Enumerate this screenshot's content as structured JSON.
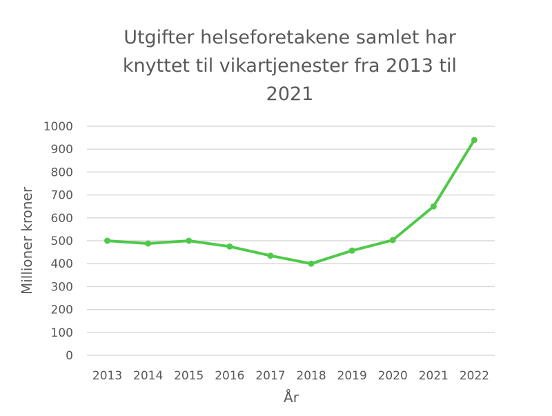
{
  "chart_data": {
    "type": "line",
    "title": "Utgifter helseforetakene samlet har knyttet til vikartjenester fra 2013 til 2021",
    "title_lines": [
      "Utgifter helseforetakene samlet har",
      "knyttet til vikartjenester fra 2013 til",
      "2021"
    ],
    "xlabel": "År",
    "ylabel": "Millioner kroner",
    "categories": [
      "2013",
      "2014",
      "2015",
      "2016",
      "2017",
      "2018",
      "2019",
      "2020",
      "2021",
      "2022"
    ],
    "series": [
      {
        "name": "Utgifter",
        "color": "#4fc94a",
        "values": [
          500,
          488,
          500,
          475,
          435,
          400,
          457,
          503,
          650,
          940
        ]
      }
    ],
    "ylim": [
      0,
      1000
    ],
    "yticks": [
      "0",
      "100",
      "200",
      "300",
      "400",
      "500",
      "600",
      "700",
      "800",
      "900",
      "1000"
    ],
    "grid": true,
    "legend": "none"
  },
  "colors": {
    "line": "#4fc94a",
    "grid": "#d9d9d9",
    "text": "#595959"
  }
}
